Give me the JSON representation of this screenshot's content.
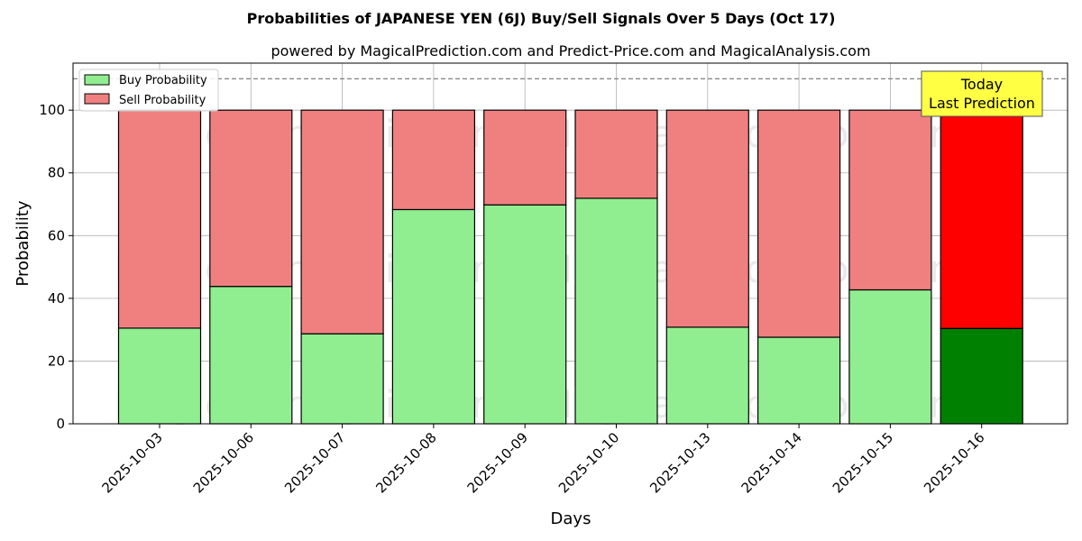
{
  "chart_data": {
    "type": "bar",
    "stacked": true,
    "title": "Probabilities of JAPANESE YEN (6J) Buy/Sell Signals Over 5 Days (Oct 17)",
    "subtitle": "powered by MagicalPrediction.com and Predict-Price.com and MagicalAnalysis.com",
    "xlabel": "Days",
    "ylabel": "Probability",
    "ylim": [
      0,
      115
    ],
    "yticks": [
      0,
      20,
      40,
      60,
      80,
      100
    ],
    "reference_line": 110,
    "grid": true,
    "legend_position": "top-left",
    "categories": [
      "2025-10-03",
      "2025-10-06",
      "2025-10-07",
      "2025-10-08",
      "2025-10-09",
      "2025-10-10",
      "2025-10-13",
      "2025-10-14",
      "2025-10-15",
      "2025-10-16"
    ],
    "series": [
      {
        "name": "Buy Probability",
        "color": "#90ee90",
        "highlight_color": "#008000",
        "values": [
          30.5,
          43.8,
          28.7,
          68.3,
          69.8,
          71.9,
          30.8,
          27.6,
          42.7,
          30.4
        ]
      },
      {
        "name": "Sell Probability",
        "color": "#f08080",
        "highlight_color": "#ff0000",
        "values": [
          69.5,
          56.2,
          71.3,
          31.7,
          30.2,
          28.1,
          69.2,
          72.4,
          57.3,
          69.6
        ]
      }
    ],
    "highlight_index": 9,
    "annotation": {
      "line1": "Today",
      "line2": "Last Prediction",
      "color": "#ffff44"
    },
    "watermarks": [
      "MagicalAnalysis.com",
      "MagicalPrediction.com"
    ]
  }
}
